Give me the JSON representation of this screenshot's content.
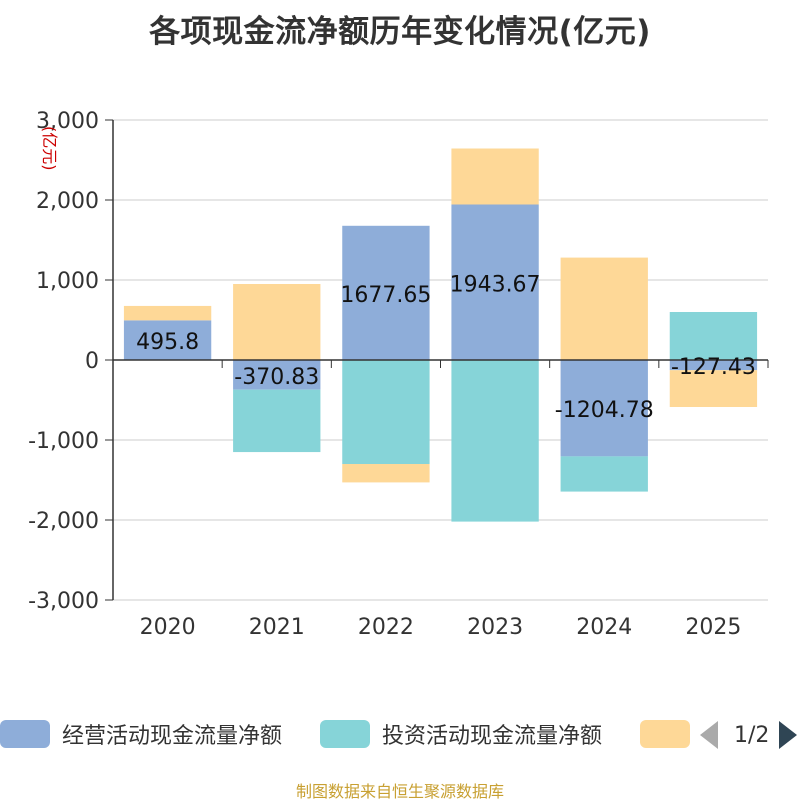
{
  "title": "各项现金流净额历年变化情况(亿元)",
  "unit_label": "(亿元)",
  "source": "制图数据来自恒生聚源数据库",
  "legend": {
    "items": [
      {
        "label": "经营活动现金流量净额",
        "color": "#8eadd9"
      },
      {
        "label": "投资活动现金流量净额",
        "color": "#86d4d8"
      },
      {
        "label": "",
        "color": "#fed897"
      }
    ],
    "page_text": "1/2"
  },
  "chart_data": {
    "type": "bar",
    "stacked": true,
    "categories": [
      "2020",
      "2021",
      "2022",
      "2023",
      "2024",
      "2025"
    ],
    "ylim": [
      -3000,
      3000
    ],
    "yticks": [
      -3000,
      -2000,
      -1000,
      0,
      1000,
      2000,
      3000
    ],
    "ytick_labels": [
      "-3,000",
      "-2,000",
      "-1,000",
      "0",
      "1,000",
      "2,000",
      "3,000"
    ],
    "grid": true,
    "series": [
      {
        "name": "经营活动现金流量净额",
        "color": "#8eadd9",
        "values": [
          495.8,
          -370.83,
          1677.65,
          1943.67,
          -1204.78,
          -127.43
        ],
        "labels": [
          "495.8",
          "-370.83",
          "1677.65",
          "1943.67",
          "-1204.78",
          "-127.43"
        ]
      },
      {
        "name": "投资活动现金流量净额",
        "color": "#86d4d8",
        "values": [
          0,
          -780,
          -1300,
          -2020,
          -440,
          600
        ]
      },
      {
        "color": "#fed897",
        "values": [
          180,
          950,
          -230,
          700,
          1280,
          -460
        ]
      }
    ]
  }
}
